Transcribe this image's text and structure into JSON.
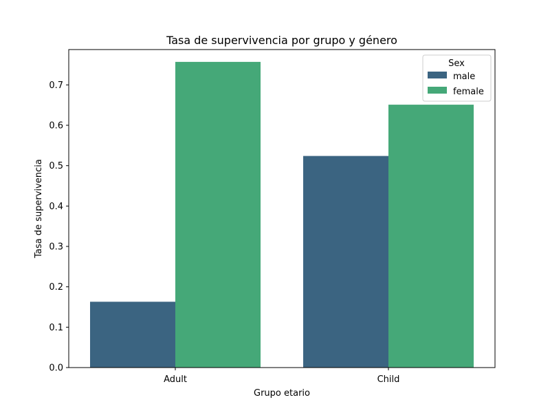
{
  "chart_data": {
    "type": "bar",
    "title": "Tasa de supervivencia por grupo y género",
    "xlabel": "Grupo etario",
    "ylabel": "Tasa de supervivencia",
    "categories": [
      "Adult",
      "Child"
    ],
    "series": [
      {
        "name": "male",
        "color": "#3b6481",
        "values": [
          0.163,
          0.524
        ]
      },
      {
        "name": "female",
        "color": "#45a878",
        "values": [
          0.757,
          0.651
        ]
      }
    ],
    "ylim": [
      0,
      0.7875
    ],
    "yticks": [
      0.0,
      0.1,
      0.2,
      0.3,
      0.4,
      0.5,
      0.6,
      0.7
    ],
    "ytick_labels": [
      "0.0",
      "0.1",
      "0.2",
      "0.3",
      "0.4",
      "0.5",
      "0.6",
      "0.7"
    ],
    "legend": {
      "title": "Sex",
      "placement": "top-right"
    },
    "grid": false
  }
}
